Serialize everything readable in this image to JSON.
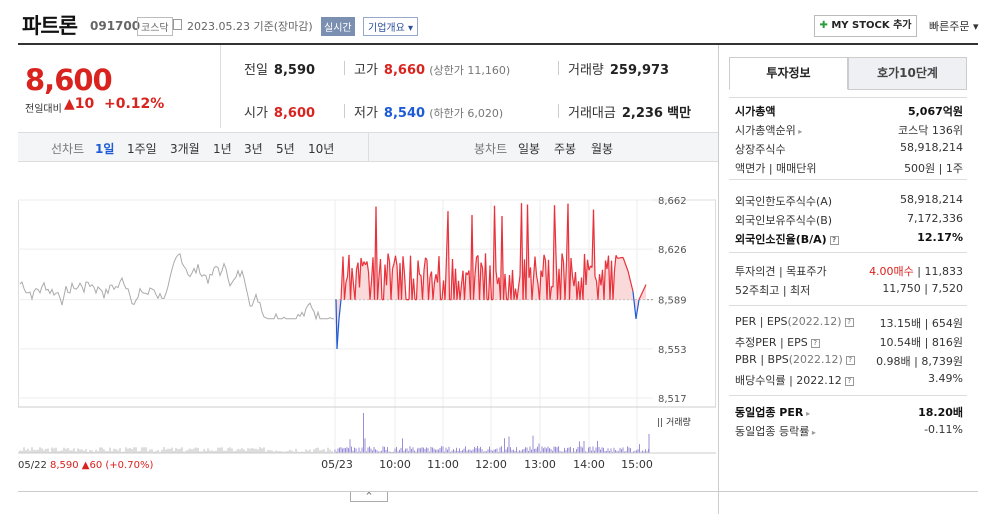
{
  "header": {
    "name": "파트론",
    "code": "091700",
    "market": "코스닥",
    "date": "2023.05.23 기준(장마감)",
    "realtime": "실시간",
    "company_info": "기업개요",
    "mystock": "MY STOCK 추가",
    "quick_order": "빠른주문"
  },
  "price": {
    "current": "8,600",
    "change_label": "전일대비",
    "change": "10",
    "percent": "+0.12%"
  },
  "stats": {
    "prev_label": "전일",
    "prev": "8,590",
    "high_label": "고가",
    "high": "8,660",
    "upper_limit": "(상한가 11,160)",
    "volume_label": "거래량",
    "volume": "259,973",
    "open_label": "시가",
    "open": "8,600",
    "low_label": "저가",
    "low": "8,540",
    "lower_limit": "(하한가 6,020)",
    "amount_label": "거래대금",
    "amount": "2,236",
    "amount_unit": "백만"
  },
  "periods": {
    "label": "선차트",
    "items": [
      "1일",
      "1주일",
      "3개월",
      "1년",
      "3년",
      "5년",
      "10년"
    ],
    "candle_label": "봉차트",
    "candle_items": [
      "일봉",
      "주봉",
      "월봉"
    ]
  },
  "chart_data": {
    "type": "line",
    "y_ticks": [
      "8,662",
      "8,626",
      "8,589",
      "8,553",
      "8,517"
    ],
    "ylim": [
      8517,
      8662
    ],
    "baseline": 8589,
    "x_ticks": [
      "05/23",
      "10:00",
      "11:00",
      "12:00",
      "13:00",
      "14:00",
      "15:00"
    ],
    "start_label": "05/22",
    "start_price": "8,590",
    "start_change": "60",
    "start_pct": "(+0.70%)",
    "volume_label": "거래량"
  },
  "toggle": "^",
  "right": {
    "tabs": [
      "투자정보",
      "호가10단계"
    ],
    "group1": [
      {
        "k": "시가총액",
        "v": "5,067억원",
        "b": true
      },
      {
        "k": "시가총액순위",
        "v": "코스닥 136위",
        "arrow": true
      },
      {
        "k": "상장주식수",
        "v": "58,918,214"
      },
      {
        "k": "액면가 | 매매단위",
        "v": "500원 | 1주"
      }
    ],
    "group2": [
      {
        "k": "외국인한도주식수(A)",
        "v": "58,918,214"
      },
      {
        "k": "외국인보유주식수(B)",
        "v": "7,172,336"
      },
      {
        "k": "외국인소진율(B/A)",
        "v": "12.17%",
        "b": true,
        "q": true
      }
    ],
    "group3": [
      {
        "k": "투자의견 | 목표주가",
        "v_red": "4.00매수",
        "v": " | 11,833"
      },
      {
        "k": "52주최고 | 최저",
        "v": "11,750 | 7,520"
      }
    ],
    "group4": [
      {
        "k": "PER | EPS",
        "ks": "(2022.12)",
        "v": "13.15배 | 654원",
        "q": true
      },
      {
        "k": "추정PER | EPS",
        "v": "10.54배 | 816원",
        "q": true
      },
      {
        "k": "PBR | BPS",
        "ks": "(2022.12)",
        "v": "0.98배 | 8,739원",
        "q": true
      },
      {
        "k": "배당수익률 | 2022.12",
        "v": "3.49%",
        "q": true
      }
    ],
    "group5": [
      {
        "k": "동일업종 PER",
        "v": "18.20배",
        "b": true,
        "arrow": true
      },
      {
        "k": "동일업종 등락률",
        "v": "-0.11%",
        "arrow": true,
        "blue": true
      }
    ]
  }
}
